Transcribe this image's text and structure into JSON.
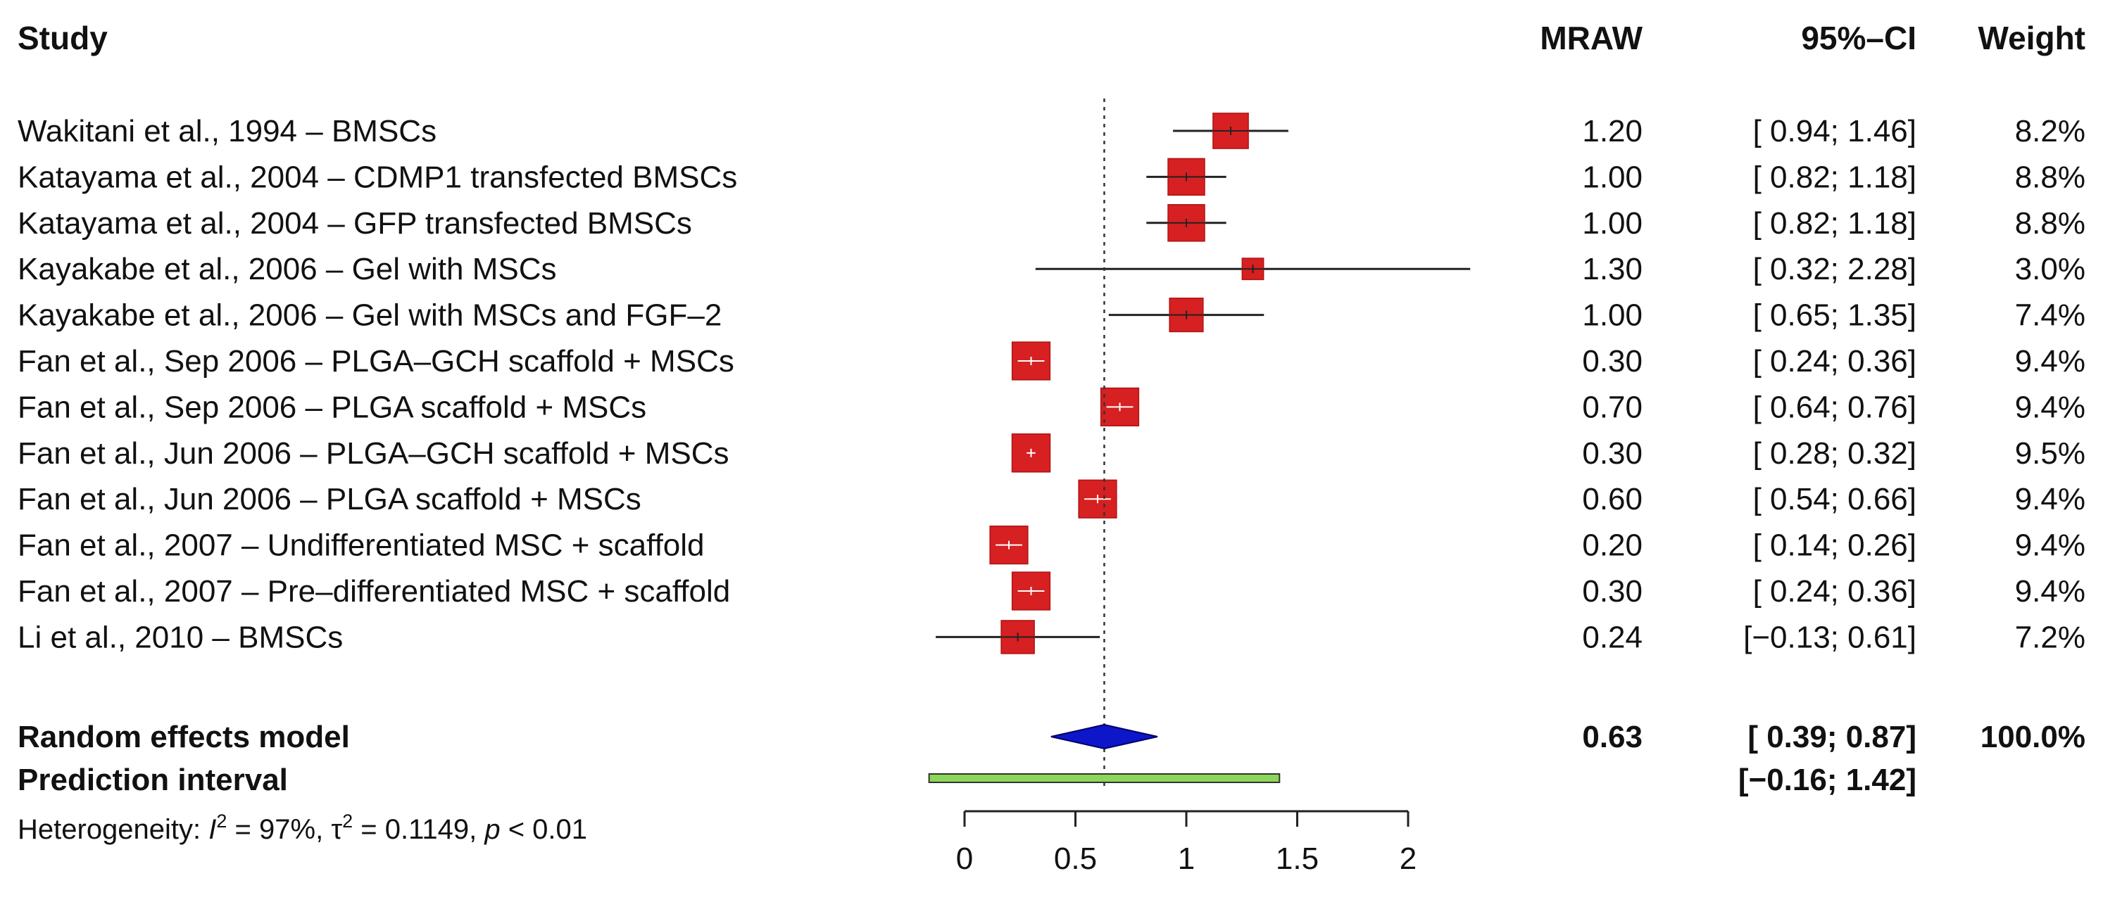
{
  "headers": {
    "study": "Study",
    "mraw": "MRAW",
    "ci": "95%–CI",
    "weight": "Weight"
  },
  "colors": {
    "box": "#d62021",
    "diamond": "#0d16c9",
    "prediction": "#8cd65a",
    "line": "#222222"
  },
  "chart_data": {
    "type": "forest",
    "measure": "MRAW",
    "xlim": [
      0,
      2
    ],
    "xticks": [
      "0",
      "0.5",
      "1",
      "1.5",
      "2"
    ],
    "reference_line": 0.63,
    "studies": [
      {
        "label": "Wakitani et al., 1994 – BMSCs",
        "est": 1.2,
        "lo": 0.94,
        "hi": 1.46,
        "mraw": "1.20",
        "ci": "[ 0.94; 1.46]",
        "weight": "8.2%",
        "w": 8.2
      },
      {
        "label": "Katayama et al., 2004 – CDMP1 transfected BMSCs",
        "est": 1.0,
        "lo": 0.82,
        "hi": 1.18,
        "mraw": "1.00",
        "ci": "[ 0.82; 1.18]",
        "weight": "8.8%",
        "w": 8.8
      },
      {
        "label": "Katayama et al., 2004 – GFP transfected BMSCs",
        "est": 1.0,
        "lo": 0.82,
        "hi": 1.18,
        "mraw": "1.00",
        "ci": "[ 0.82; 1.18]",
        "weight": "8.8%",
        "w": 8.8
      },
      {
        "label": "Kayakabe et al., 2006 – Gel with MSCs",
        "est": 1.3,
        "lo": 0.32,
        "hi": 2.28,
        "mraw": "1.30",
        "ci": "[ 0.32; 2.28]",
        "weight": "3.0%",
        "w": 3.0
      },
      {
        "label": "Kayakabe et al., 2006 – Gel with MSCs and FGF–2",
        "est": 1.0,
        "lo": 0.65,
        "hi": 1.35,
        "mraw": "1.00",
        "ci": "[ 0.65; 1.35]",
        "weight": "7.4%",
        "w": 7.4
      },
      {
        "label": "Fan et al., Sep 2006 – PLGA–GCH scaffold + MSCs",
        "est": 0.3,
        "lo": 0.24,
        "hi": 0.36,
        "mraw": "0.30",
        "ci": "[ 0.24; 0.36]",
        "weight": "9.4%",
        "w": 9.4
      },
      {
        "label": "Fan et al., Sep 2006 – PLGA scaffold + MSCs",
        "est": 0.7,
        "lo": 0.64,
        "hi": 0.76,
        "mraw": "0.70",
        "ci": "[ 0.64; 0.76]",
        "weight": "9.4%",
        "w": 9.4
      },
      {
        "label": "Fan et al., Jun 2006 – PLGA–GCH scaffold + MSCs",
        "est": 0.3,
        "lo": 0.28,
        "hi": 0.32,
        "mraw": "0.30",
        "ci": "[ 0.28; 0.32]",
        "weight": "9.5%",
        "w": 9.5
      },
      {
        "label": "Fan et al., Jun 2006 – PLGA scaffold + MSCs",
        "est": 0.6,
        "lo": 0.54,
        "hi": 0.66,
        "mraw": "0.60",
        "ci": "[ 0.54; 0.66]",
        "weight": "9.4%",
        "w": 9.4
      },
      {
        "label": "Fan et al., 2007 – Undifferentiated MSC + scaffold",
        "est": 0.2,
        "lo": 0.14,
        "hi": 0.26,
        "mraw": "0.20",
        "ci": "[ 0.14; 0.26]",
        "weight": "9.4%",
        "w": 9.4
      },
      {
        "label": "Fan et al., 2007 – Pre–differentiated MSC + scaffold",
        "est": 0.3,
        "lo": 0.24,
        "hi": 0.36,
        "mraw": "0.30",
        "ci": "[ 0.24; 0.36]",
        "weight": "9.4%",
        "w": 9.4
      },
      {
        "label": "Li et al., 2010 – BMSCs",
        "est": 0.24,
        "lo": -0.13,
        "hi": 0.61,
        "mraw": "0.24",
        "ci": "[−0.13; 0.61]",
        "weight": "7.2%",
        "w": 7.2
      }
    ],
    "random_effects": {
      "label": "Random effects model",
      "est": 0.63,
      "lo": 0.39,
      "hi": 0.87,
      "mraw": "0.63",
      "ci": "[ 0.39; 0.87]",
      "weight": "100.0%"
    },
    "prediction_interval": {
      "label": "Prediction interval",
      "lo": -0.16,
      "hi": 1.42,
      "ci": "[−0.16; 1.42]"
    },
    "heterogeneity": {
      "prefix": "Heterogeneity: ",
      "i2_symbol": "I",
      "i2_value": " = 97%, ",
      "tau_symbol": "τ",
      "tau_value": " = 0.1149, ",
      "p_symbol": "p",
      "p_value": " < 0.01"
    }
  }
}
